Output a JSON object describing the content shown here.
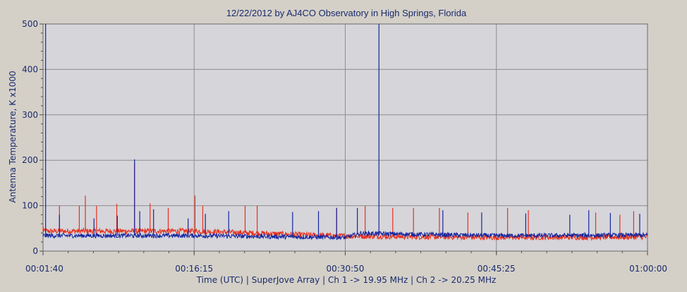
{
  "chart_data": {
    "type": "line",
    "title": "12/22/2012  by  AJ4CO Observatory  in  High Springs, Florida",
    "ylabel": "Antenna Temperature, K x1000",
    "xlabel": "Time (UTC)  |  SuperJove Array  |  Ch 1 -> 19.95 MHz  |  Ch 2 -> 20.25 MHz",
    "ylim": [
      0,
      500
    ],
    "xlim_seconds": [
      100,
      3600
    ],
    "yticks": [
      0,
      100,
      200,
      300,
      400,
      500
    ],
    "ytick_labels": [
      "0",
      "100",
      "200",
      "300",
      "400",
      "500"
    ],
    "xticks_seconds": [
      100,
      975,
      1850,
      2725,
      3600
    ],
    "xtick_labels": [
      "00:01:40",
      "00:16:15",
      "00:30:50",
      "00:45:25",
      "01:00:00"
    ],
    "grid": true,
    "series": [
      {
        "name": "Ch 1",
        "color": "#e8301c",
        "baseline": [
          [
            100,
            44
          ],
          [
            975,
            44
          ],
          [
            1850,
            33
          ],
          [
            2725,
            30
          ],
          [
            3600,
            31
          ]
        ],
        "spikes": [
          [
            101,
            55
          ],
          [
            195,
            100
          ],
          [
            310,
            100
          ],
          [
            345,
            122
          ],
          [
            410,
            100
          ],
          [
            527,
            104
          ],
          [
            630,
            195
          ],
          [
            720,
            105
          ],
          [
            825,
            95
          ],
          [
            980,
            122
          ],
          [
            1025,
            100
          ],
          [
            1270,
            100
          ],
          [
            1340,
            100
          ],
          [
            1800,
            95
          ],
          [
            1965,
            100
          ],
          [
            2125,
            95
          ],
          [
            2245,
            95
          ],
          [
            2395,
            95
          ],
          [
            2560,
            85
          ],
          [
            2790,
            95
          ],
          [
            2910,
            90
          ],
          [
            3300,
            85
          ],
          [
            3440,
            80
          ],
          [
            3520,
            88
          ]
        ]
      },
      {
        "name": "Ch 2",
        "color": "#1525a0",
        "baseline": [
          [
            100,
            34
          ],
          [
            975,
            34
          ],
          [
            1850,
            30
          ],
          [
            1940,
            39
          ],
          [
            2725,
            34
          ],
          [
            3600,
            35
          ]
        ],
        "spikes": [
          [
            115,
            500
          ],
          [
            195,
            80
          ],
          [
            395,
            72
          ],
          [
            530,
            78
          ],
          [
            630,
            202
          ],
          [
            660,
            88
          ],
          [
            740,
            92
          ],
          [
            940,
            72
          ],
          [
            1040,
            82
          ],
          [
            1175,
            88
          ],
          [
            1545,
            86
          ],
          [
            1695,
            88
          ],
          [
            1800,
            95
          ],
          [
            1920,
            95
          ],
          [
            2045,
            500
          ],
          [
            2415,
            90
          ],
          [
            2640,
            85
          ],
          [
            2895,
            83
          ],
          [
            3150,
            80
          ],
          [
            3260,
            90
          ],
          [
            3385,
            84
          ],
          [
            3555,
            82
          ]
        ]
      }
    ]
  }
}
